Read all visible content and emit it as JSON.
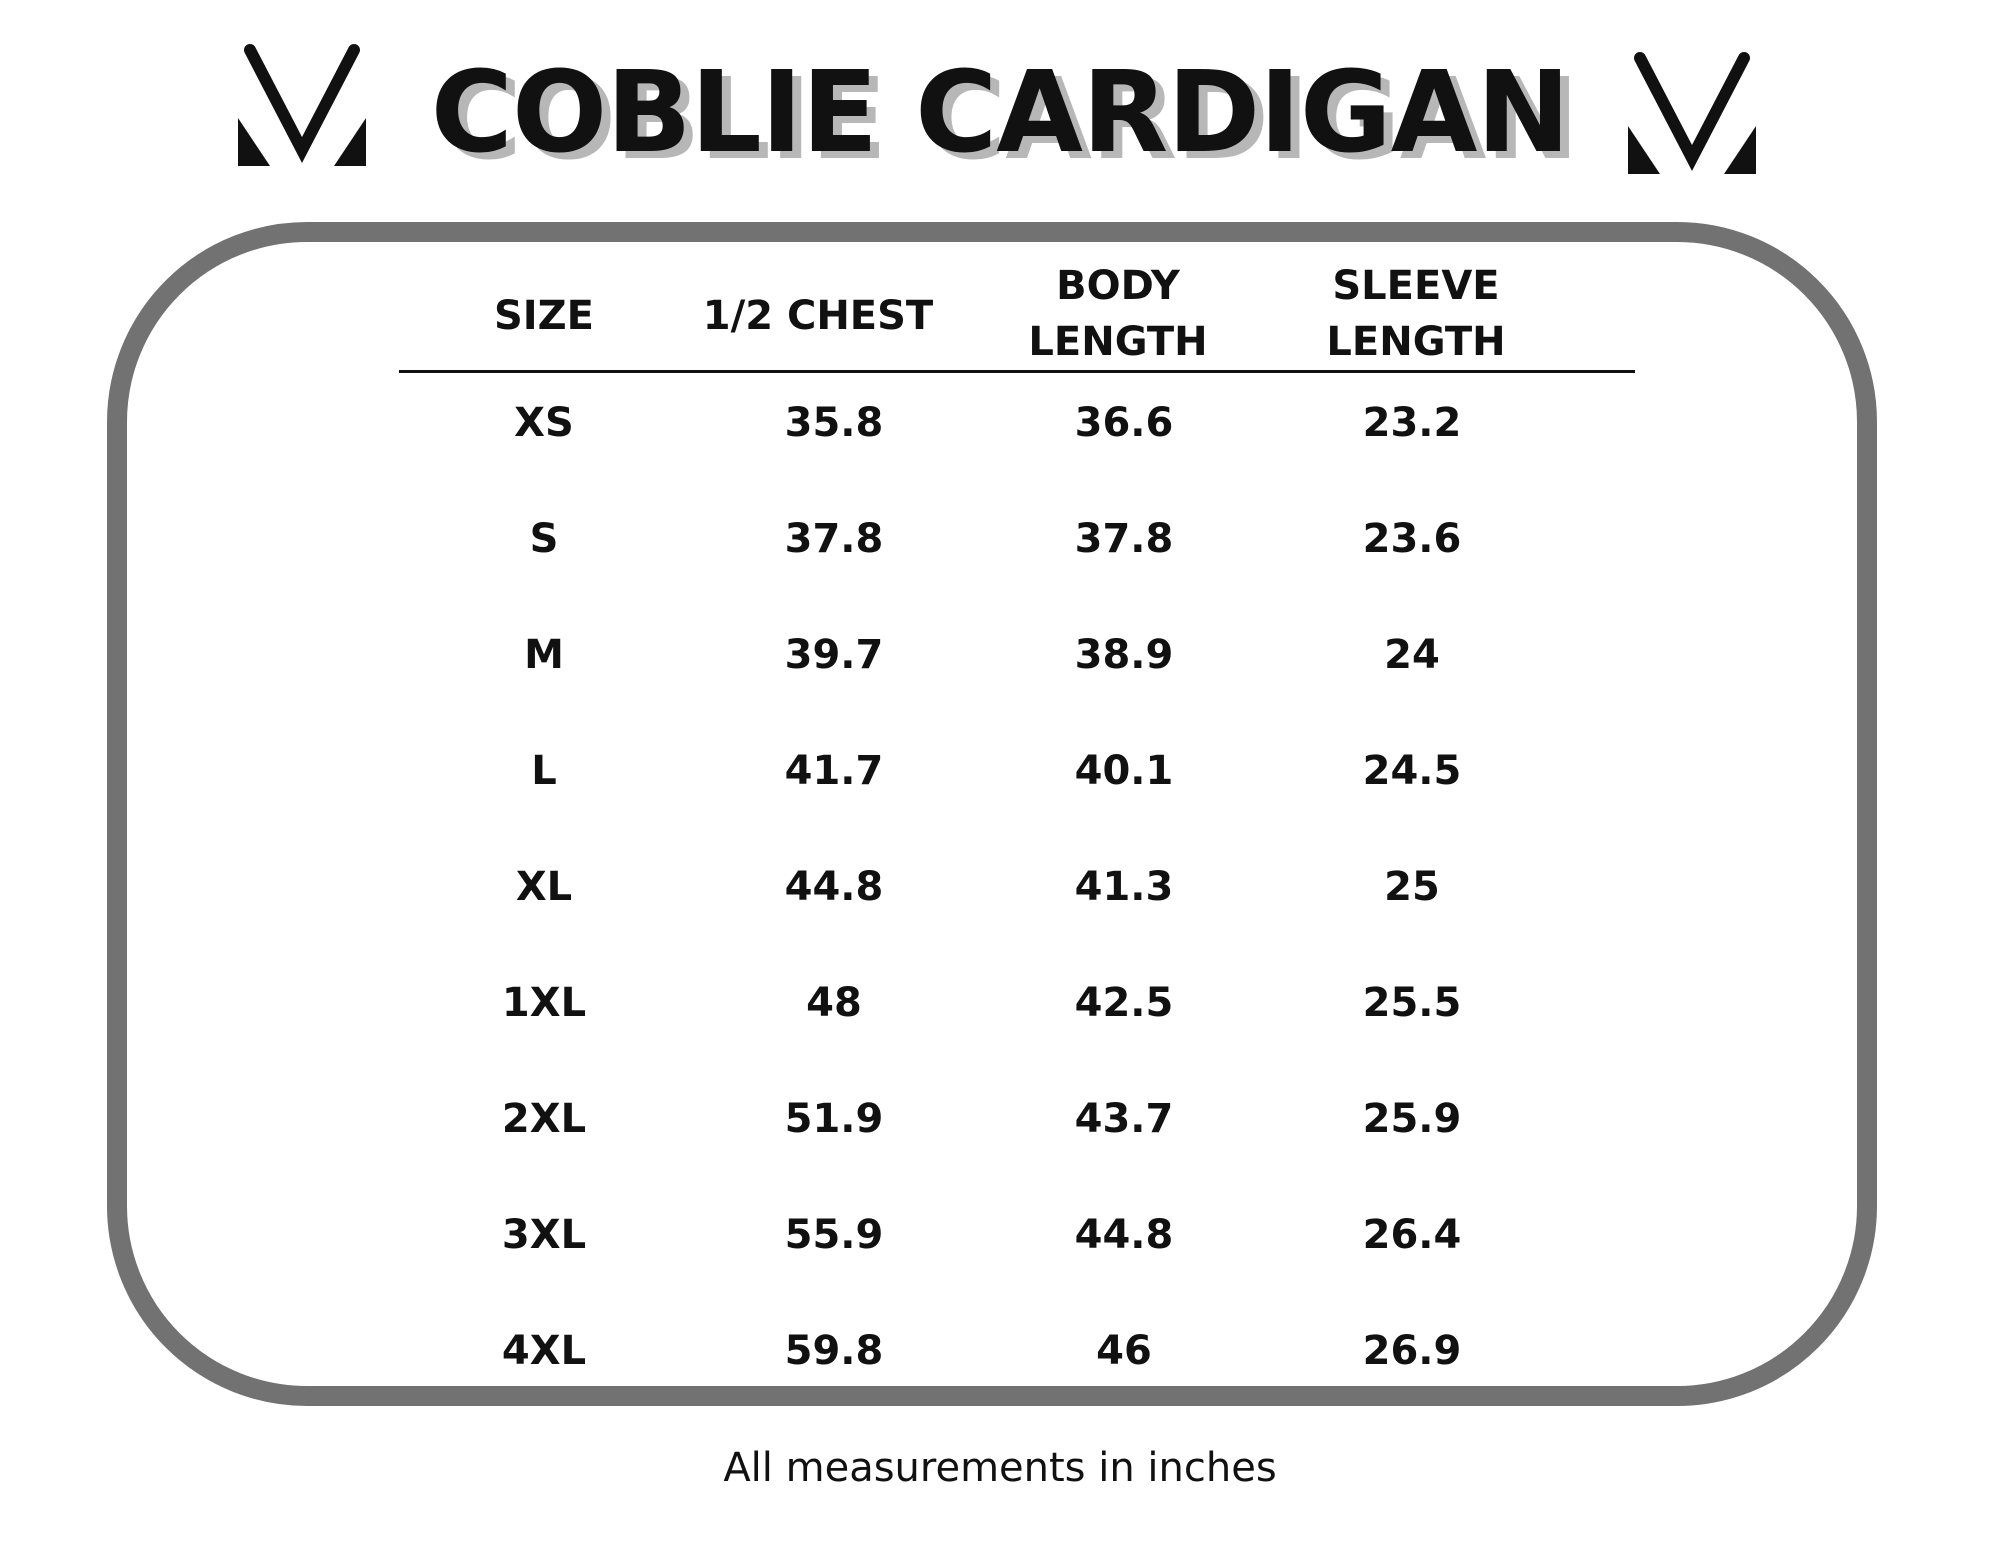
{
  "title": "COBLIE CARDIGAN",
  "logo_icon": "stylized-m-logo-icon",
  "columns": [
    {
      "line1": "SIZE",
      "line2": ""
    },
    {
      "line1": "1/2 CHEST",
      "line2": ""
    },
    {
      "line1": "BODY",
      "line2": "LENGTH"
    },
    {
      "line1": "SLEEVE",
      "line2": "LENGTH"
    }
  ],
  "rows": [
    [
      "XS",
      "35.8",
      "36.6",
      "23.2"
    ],
    [
      "S",
      "37.8",
      "37.8",
      "23.6"
    ],
    [
      "M",
      "39.7",
      "38.9",
      "24"
    ],
    [
      "L",
      "41.7",
      "40.1",
      "24.5"
    ],
    [
      "XL",
      "44.8",
      "41.3",
      "25"
    ],
    [
      "1XL",
      "48",
      "42.5",
      "25.5"
    ],
    [
      "2XL",
      "51.9",
      "43.7",
      "25.9"
    ],
    [
      "3XL",
      "55.9",
      "44.8",
      "26.4"
    ],
    [
      "4XL",
      "59.8",
      "46",
      "26.9"
    ]
  ],
  "footnote": "All measurements in inches",
  "colors": {
    "text": "#111111",
    "frame": "#727272",
    "title_shadow": "#b7b7b7"
  }
}
